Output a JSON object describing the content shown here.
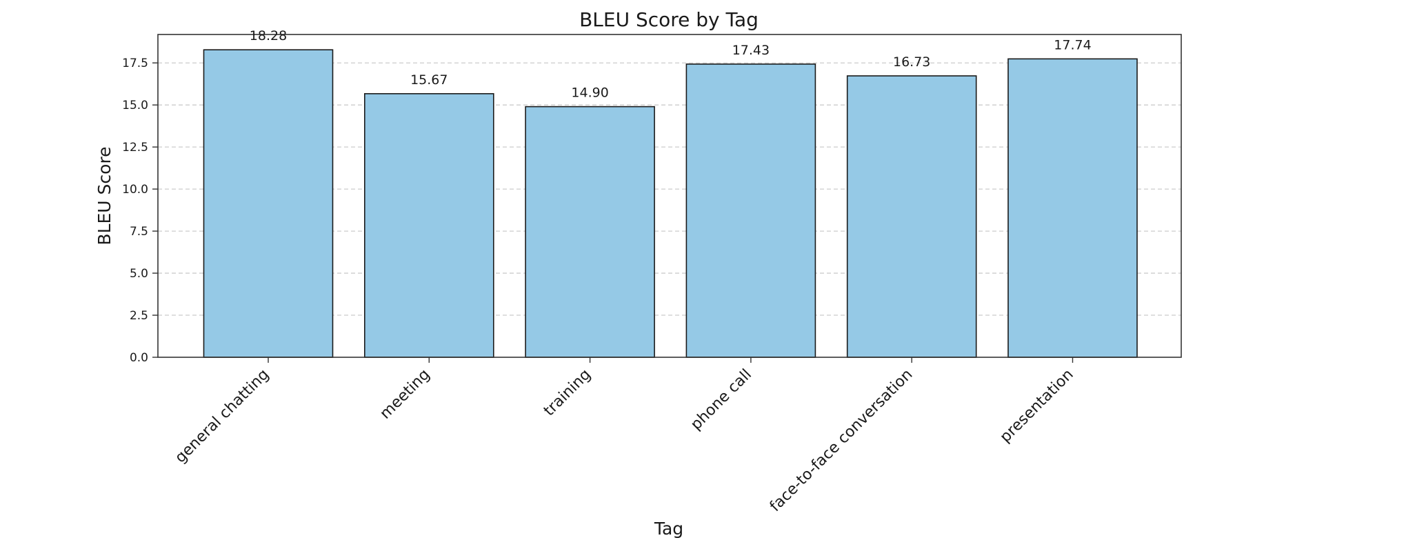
{
  "chart_data": {
    "type": "bar",
    "title": "BLEU Score by Tag",
    "xlabel": "Tag",
    "ylabel": "BLEU Score",
    "categories": [
      "general chatting",
      "meeting",
      "training",
      "phone call",
      "face-to-face conversation",
      "presentation"
    ],
    "values": [
      18.28,
      15.67,
      14.9,
      17.43,
      16.73,
      17.74
    ],
    "data_labels": [
      "18.28",
      "15.67",
      "14.90",
      "17.43",
      "16.73",
      "17.74"
    ],
    "yticks": [
      0.0,
      2.5,
      5.0,
      7.5,
      10.0,
      12.5,
      15.0,
      17.5
    ],
    "ytick_labels": [
      "0.0",
      "2.5",
      "5.0",
      "7.5",
      "10.0",
      "12.5",
      "15.0",
      "17.5"
    ],
    "ylim": [
      0,
      19.19
    ],
    "grid": "y-dashed",
    "legend": "none",
    "bar_color": "#95c9e6",
    "edge_color": "#1a1a1a",
    "grid_color": "#cccccc"
  }
}
